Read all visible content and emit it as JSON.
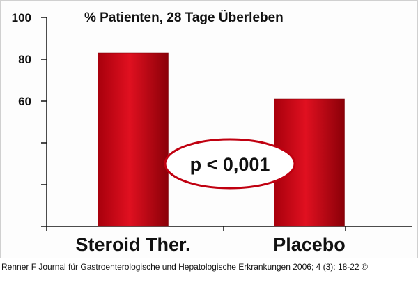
{
  "chart_data": {
    "type": "bar",
    "title": "% Patienten, 28 Tage Überleben",
    "categories": [
      "Steroid Ther.",
      "Placebo"
    ],
    "values": [
      83,
      61
    ],
    "ylim": [
      0,
      100
    ],
    "yticks": [
      0,
      20,
      40,
      60,
      80,
      100
    ],
    "ytick_labels": [
      "",
      "",
      "",
      "60",
      "80",
      "100"
    ],
    "bar_color": "#c00010",
    "annotation": "p < 0,001",
    "grid": false,
    "legend": "none"
  },
  "source": "Renner F Journal für Gastroenterologische und Hepatologische Erkrankungen 2006; 4 (3): 18-22 ©"
}
